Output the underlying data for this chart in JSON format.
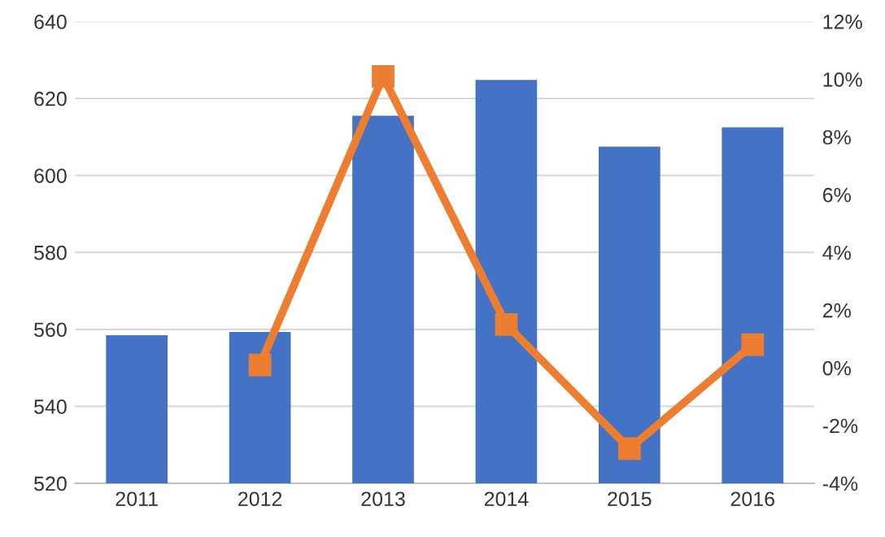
{
  "chart_data": {
    "type": "bar",
    "categories": [
      "2011",
      "2012",
      "2013",
      "2014",
      "2015",
      "2016"
    ],
    "series": [
      {
        "color": "#4472c4",
        "values": [
          558.5,
          559.3,
          615.5,
          624.8,
          607.5,
          612.5
        ]
      },
      {
        "type": "line",
        "axis": "y2",
        "color": "#ed7d31",
        "marker": "square",
        "values": [
          null,
          0.1,
          10.1,
          1.5,
          -2.8,
          0.8
        ]
      }
    ],
    "ylim": [
      520,
      640
    ],
    "yticks": [
      520,
      540,
      560,
      580,
      600,
      620,
      640
    ],
    "y2lim": [
      -4,
      12
    ],
    "y2ticks": [
      {
        "value": -4,
        "label": "-4%"
      },
      {
        "value": -2,
        "label": "-2%"
      },
      {
        "value": 0,
        "label": "0%"
      },
      {
        "value": 2,
        "label": "2%"
      },
      {
        "value": 4,
        "label": "4%"
      },
      {
        "value": 6,
        "label": "6%"
      },
      {
        "value": 8,
        "label": "8%"
      },
      {
        "value": 10,
        "label": "10%"
      },
      {
        "value": 12,
        "label": "12%"
      }
    ],
    "grid": "y",
    "legend": false
  }
}
